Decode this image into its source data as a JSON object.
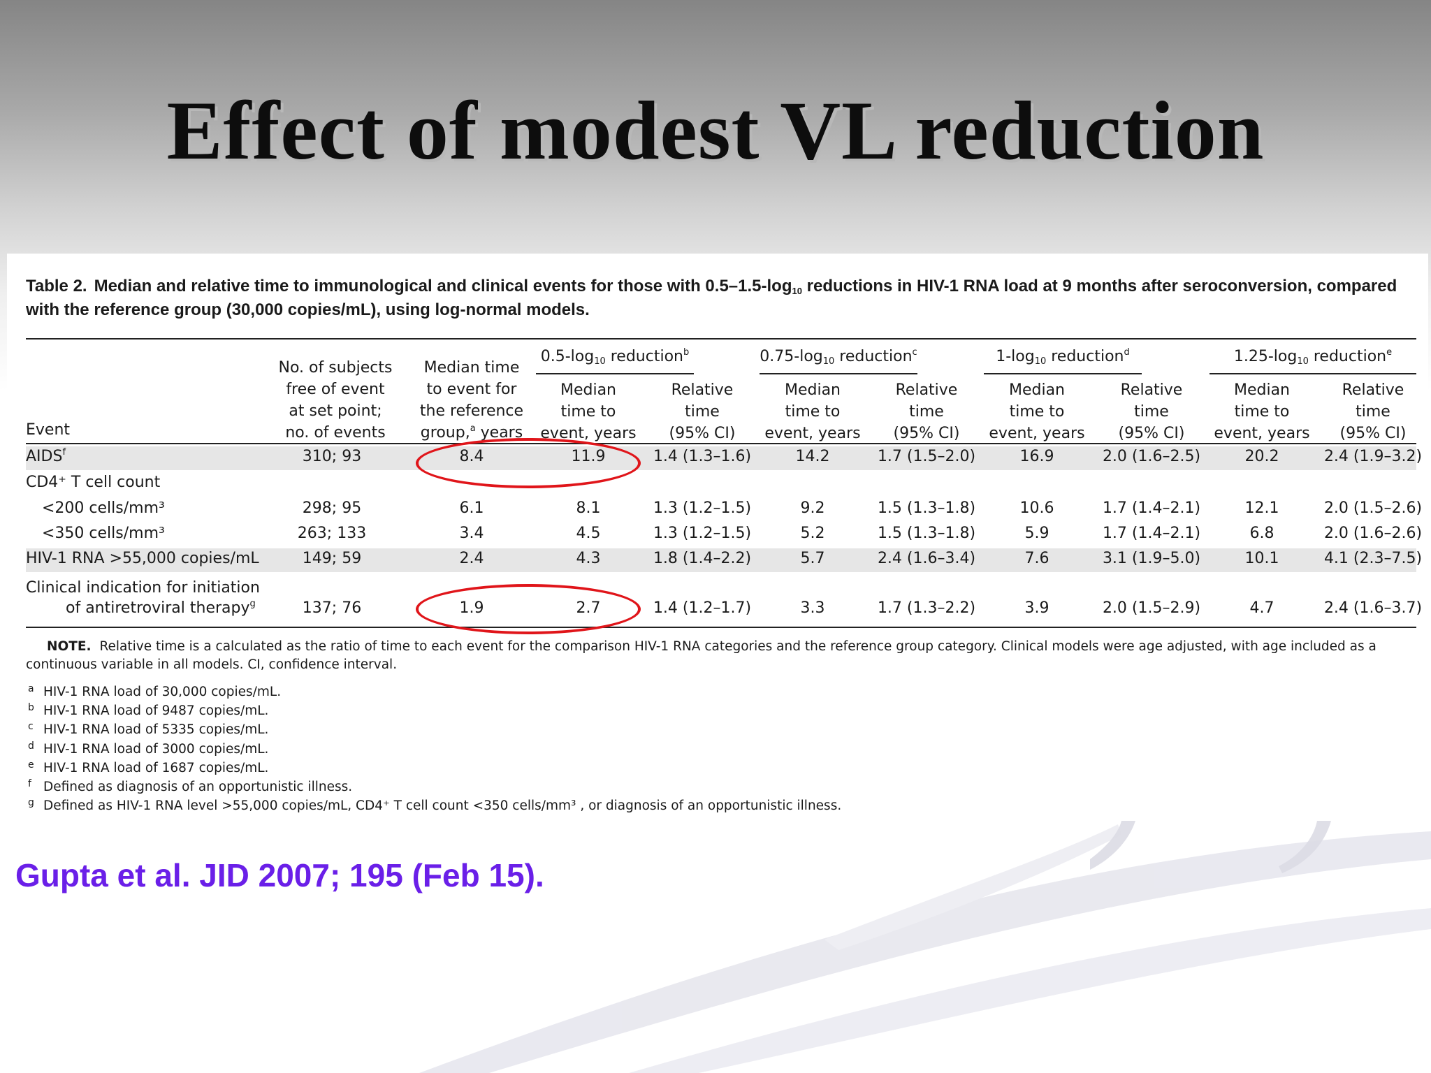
{
  "slide": {
    "title": "Effect of modest VL reduction",
    "citation": "Gupta et al. JID 2007; 195 (Feb 15).",
    "colors": {
      "citation": "#6a1fe8",
      "highlight_oval": "#e0151a",
      "shaded_row": "#e6e6e6"
    }
  },
  "table": {
    "label": "Table 2.",
    "caption_a": "Median and relative time to immunological and clinical events for those with 0.5–1.5-log",
    "caption_sub": "10",
    "caption_b": " reductions in HIV-1 RNA load at 9 months after seroconversion, compared with the reference group (30,000 copies/mL), using log-normal models.",
    "headers": {
      "event": "Event",
      "subjects": [
        "No. of subjects",
        "free of event",
        "at set point;",
        "no. of events"
      ],
      "median_ref": [
        "Median time",
        "to event for",
        "the reference"
      ],
      "median_ref_last_a": "group,",
      "median_ref_last_sup": "a",
      "median_ref_last_b": " years",
      "groups": [
        {
          "pre": "0.5-log",
          "sub": "10",
          "post": " reduction",
          "sup": "b"
        },
        {
          "pre": "0.75-log",
          "sub": "10",
          "post": " reduction",
          "sup": "c"
        },
        {
          "pre": "1-log",
          "sub": "10",
          "post": " reduction",
          "sup": "d"
        },
        {
          "pre": "1.25-log",
          "sub": "10",
          "post": " reduction",
          "sup": "e"
        }
      ],
      "sub_median": [
        "Median",
        "time to",
        "event, years"
      ],
      "sub_relative": [
        "Relative",
        "time",
        "(95% CI)"
      ]
    },
    "rows": [
      {
        "event": "AIDS",
        "event_sup": "f",
        "event_indent": false,
        "subjects": "310; 93",
        "median_ref": "8.4",
        "shaded": true,
        "values": [
          "11.9",
          "1.4 (1.3–1.6)",
          "14.2",
          "1.7 (1.5–2.0)",
          "16.9",
          "2.0 (1.6–2.5)",
          "20.2",
          "2.4 (1.9–3.2)"
        ]
      },
      {
        "event": "CD4⁺ T cell count",
        "event_sup": "",
        "event_indent": false,
        "subjects": "",
        "median_ref": "",
        "shaded": false,
        "values": [
          "",
          "",
          "",
          "",
          "",
          "",
          "",
          ""
        ]
      },
      {
        "event": "<200 cells/mm³",
        "event_sup": "",
        "event_indent": true,
        "subjects": "298; 95",
        "median_ref": "6.1",
        "shaded": false,
        "values": [
          "8.1",
          "1.3 (1.2–1.5)",
          "9.2",
          "1.5 (1.3–1.8)",
          "10.6",
          "1.7 (1.4–2.1)",
          "12.1",
          "2.0 (1.5–2.6)"
        ]
      },
      {
        "event": "<350 cells/mm³",
        "event_sup": "",
        "event_indent": true,
        "subjects": "263; 133",
        "median_ref": "3.4",
        "shaded": false,
        "values": [
          "4.5",
          "1.3 (1.2–1.5)",
          "5.2",
          "1.5 (1.3–1.8)",
          "5.9",
          "1.7 (1.4–2.1)",
          "6.8",
          "2.0 (1.6–2.6)"
        ]
      },
      {
        "event": "HIV-1 RNA >55,000 copies/mL",
        "event_sup": "",
        "event_indent": false,
        "subjects": "149; 59",
        "median_ref": "2.4",
        "shaded": true,
        "values": [
          "4.3",
          "1.8 (1.4–2.2)",
          "5.7",
          "2.4 (1.6–3.4)",
          "7.6",
          "3.1 (1.9–5.0)",
          "10.1",
          "4.1 (2.3–7.5)"
        ]
      },
      {
        "event": "Clinical indication for initiation",
        "event_line2": "of antiretroviral therapy",
        "event_sup": "g",
        "event_indent": false,
        "subjects": "137; 76",
        "median_ref": "1.9",
        "shaded": false,
        "values": [
          "2.7",
          "1.4 (1.2–1.7)",
          "3.3",
          "1.7 (1.3–2.2)",
          "3.9",
          "2.0 (1.5–2.9)",
          "4.7",
          "2.4 (1.6–3.7)"
        ]
      }
    ],
    "note_label": "NOTE.",
    "note_text": "Relative time is a calculated as the ratio of time to each event for the comparison HIV-1 RNA categories and the reference group category. Clinical models were age adjusted, with age included as a continuous variable in all models. CI, confidence interval.",
    "footnotes": [
      {
        "mark": "a",
        "text": "HIV-1 RNA load of 30,000 copies/mL."
      },
      {
        "mark": "b",
        "text": "HIV-1 RNA load of 9487 copies/mL."
      },
      {
        "mark": "c",
        "text": "HIV-1 RNA load of 5335 copies/mL."
      },
      {
        "mark": "d",
        "text": "HIV-1 RNA load of 3000 copies/mL."
      },
      {
        "mark": "e",
        "text": "HIV-1 RNA load of 1687 copies/mL."
      },
      {
        "mark": "f",
        "text": "Defined as diagnosis of an opportunistic illness."
      },
      {
        "mark": "g",
        "text": "Defined as HIV-1 RNA level >55,000 copies/mL, CD4⁺ T cell count <350 cells/mm³ , or diagnosis of an opportunistic illness."
      }
    ]
  }
}
